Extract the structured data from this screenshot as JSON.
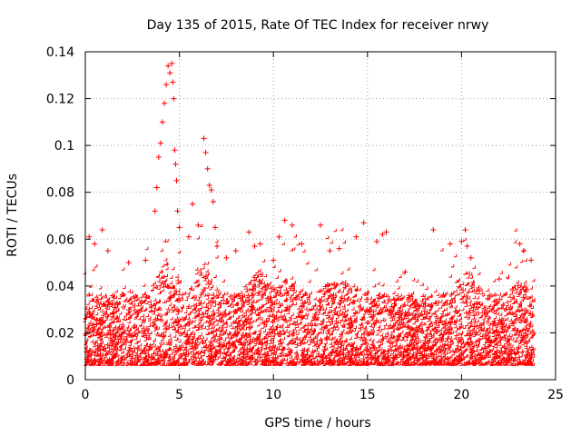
{
  "chart_data": {
    "type": "scatter",
    "title": "Day 135 of 2015, Rate Of TEC Index for receiver nrwy",
    "xlabel": "GPS time / hours",
    "ylabel": "ROTI / TECUs",
    "xlim": [
      0,
      25
    ],
    "ylim": [
      0,
      0.14
    ],
    "xticks": [
      0,
      5,
      10,
      15,
      20,
      25
    ],
    "xtick_labels": [
      "0",
      "5",
      "10",
      "15",
      "20",
      "25"
    ],
    "yticks": [
      0,
      0.02,
      0.04,
      0.06,
      0.08,
      0.1,
      0.12,
      0.14
    ],
    "ytick_labels": [
      "0",
      "0.02",
      "0.04",
      "0.06",
      "0.08",
      "0.1",
      "0.12",
      "0.14"
    ],
    "grid": true,
    "marker": "+",
    "color": "#ff0000",
    "x_data_range": [
      0,
      23.9
    ],
    "series": [
      {
        "name": "ROTI",
        "points": [
          [
            0.2,
            0.061
          ],
          [
            0.5,
            0.058
          ],
          [
            0.9,
            0.064
          ],
          [
            1.2,
            0.055
          ],
          [
            2.3,
            0.05
          ],
          [
            3.2,
            0.051
          ],
          [
            3.7,
            0.072
          ],
          [
            3.8,
            0.082
          ],
          [
            3.9,
            0.095
          ],
          [
            4.0,
            0.101
          ],
          [
            4.1,
            0.11
          ],
          [
            4.2,
            0.118
          ],
          [
            4.3,
            0.126
          ],
          [
            4.4,
            0.134
          ],
          [
            4.5,
            0.131
          ],
          [
            4.6,
            0.135
          ],
          [
            4.65,
            0.127
          ],
          [
            4.7,
            0.12
          ],
          [
            4.75,
            0.098
          ],
          [
            4.8,
            0.092
          ],
          [
            4.85,
            0.085
          ],
          [
            4.9,
            0.072
          ],
          [
            5.0,
            0.065
          ],
          [
            5.5,
            0.061
          ],
          [
            5.7,
            0.075
          ],
          [
            6.0,
            0.066
          ],
          [
            6.3,
            0.103
          ],
          [
            6.4,
            0.097
          ],
          [
            6.5,
            0.09
          ],
          [
            6.6,
            0.083
          ],
          [
            6.7,
            0.081
          ],
          [
            6.8,
            0.076
          ],
          [
            6.9,
            0.065
          ],
          [
            7.0,
            0.057
          ],
          [
            7.5,
            0.052
          ],
          [
            8.0,
            0.055
          ],
          [
            8.7,
            0.063
          ],
          [
            9.0,
            0.057
          ],
          [
            9.3,
            0.058
          ],
          [
            10.0,
            0.051
          ],
          [
            10.3,
            0.061
          ],
          [
            10.6,
            0.068
          ],
          [
            11.0,
            0.066
          ],
          [
            11.5,
            0.058
          ],
          [
            12.5,
            0.066
          ],
          [
            13.0,
            0.055
          ],
          [
            13.5,
            0.056
          ],
          [
            14.4,
            0.061
          ],
          [
            14.8,
            0.067
          ],
          [
            15.5,
            0.059
          ],
          [
            15.8,
            0.062
          ],
          [
            16.0,
            0.063
          ],
          [
            17.0,
            0.046
          ],
          [
            18.5,
            0.064
          ],
          [
            19.4,
            0.058
          ],
          [
            20.0,
            0.059
          ],
          [
            20.2,
            0.064
          ],
          [
            20.3,
            0.057
          ],
          [
            20.5,
            0.052
          ],
          [
            22.0,
            0.043
          ],
          [
            23.1,
            0.058
          ],
          [
            23.3,
            0.055
          ],
          [
            23.7,
            0.051
          ]
        ]
      }
    ]
  }
}
